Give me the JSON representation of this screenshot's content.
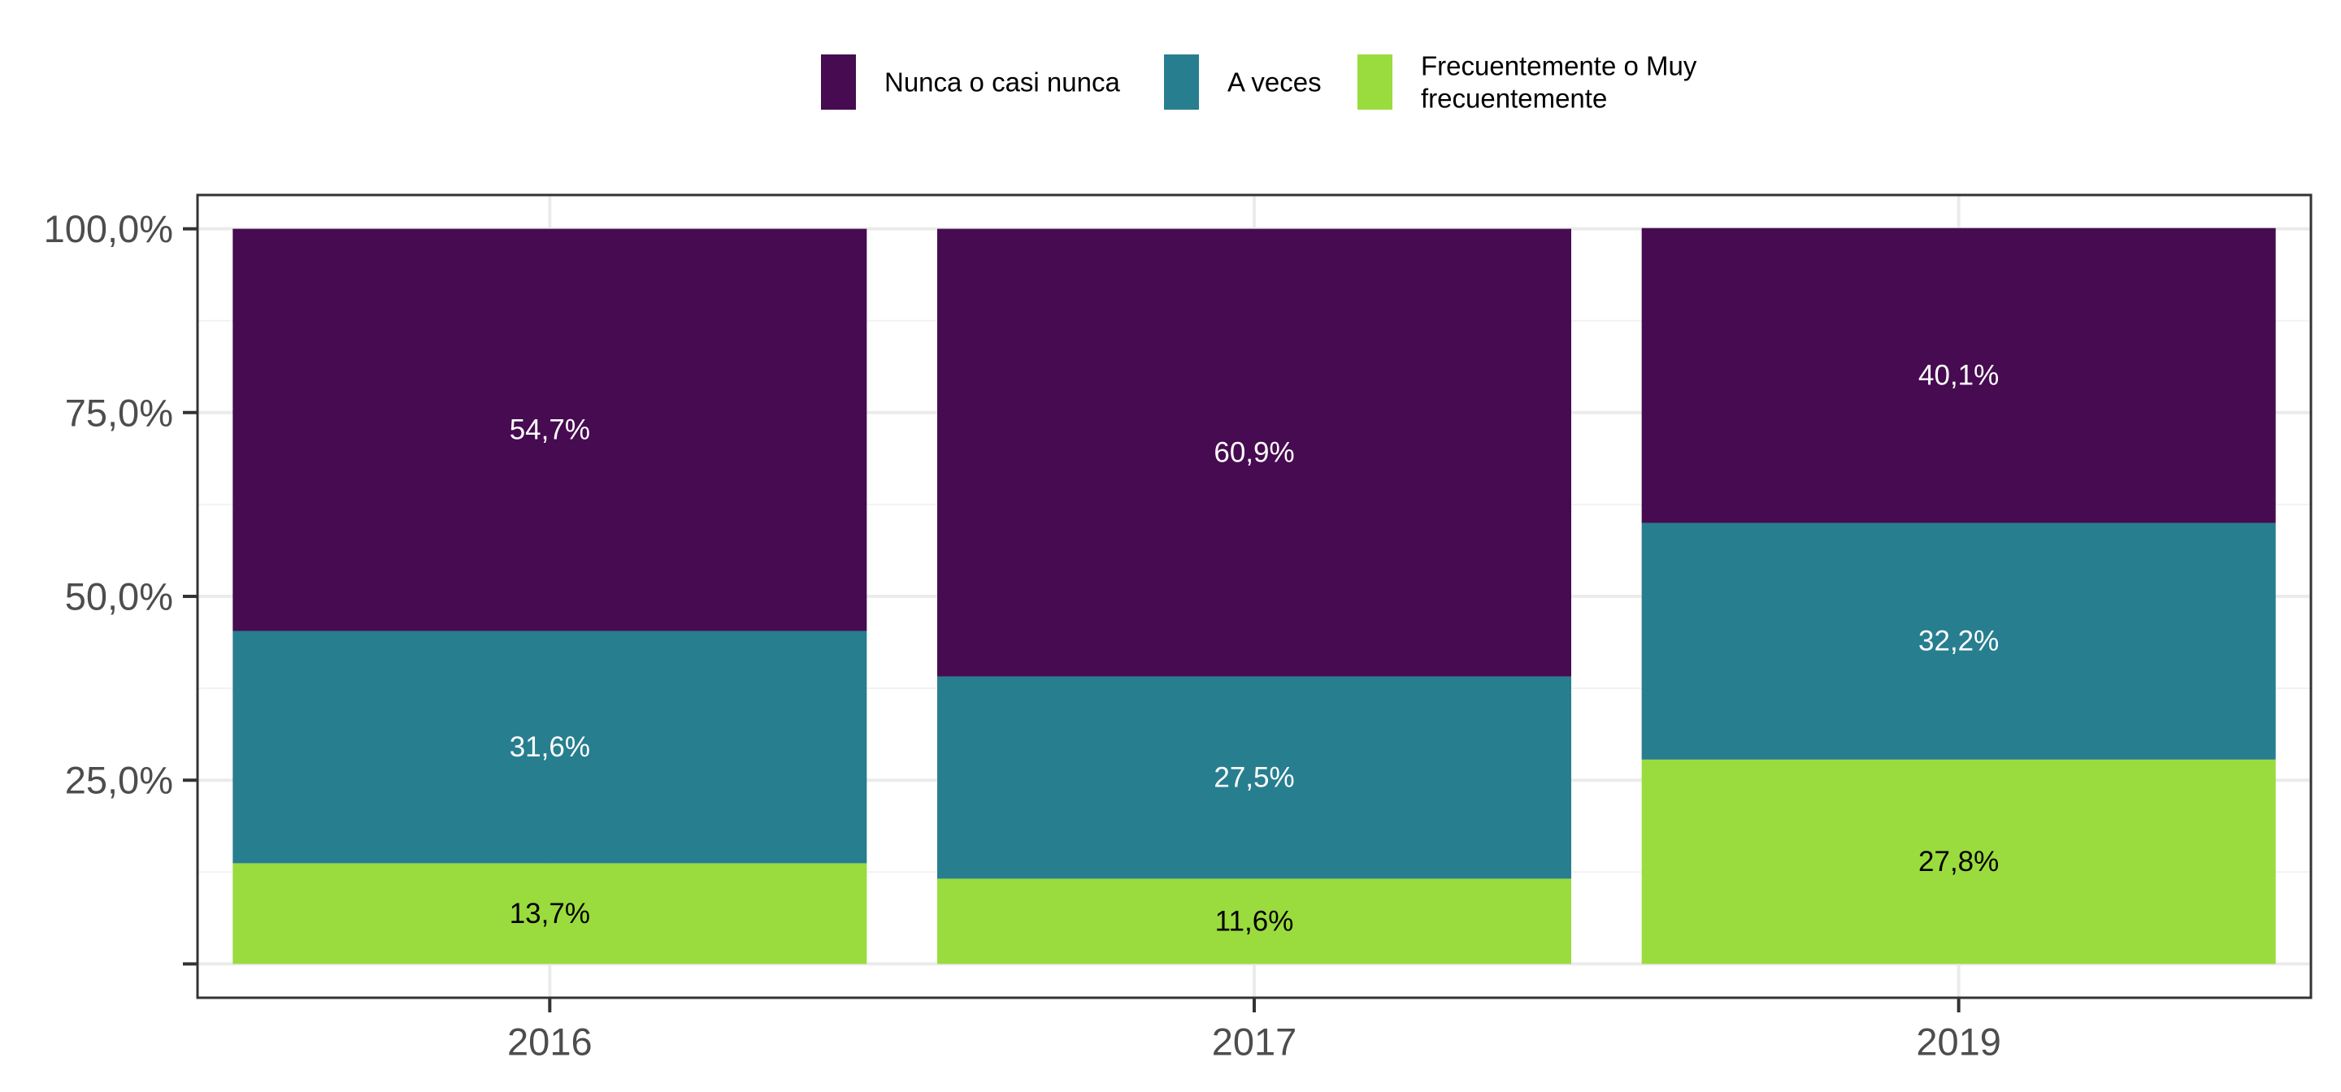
{
  "chart_data": {
    "type": "bar",
    "stacked": true,
    "categories": [
      "2016",
      "2017",
      "2019"
    ],
    "series": [
      {
        "name": "Frecuentemente o Muy frecuentemente",
        "legend_lines": [
          "Frecuentemente o Muy",
          "frecuentemente"
        ],
        "color": "#9ADB3E",
        "label_color": "#000000",
        "values": [
          13.7,
          11.6,
          27.8
        ],
        "labels": [
          "13,7%",
          "11,6%",
          "27,8%"
        ]
      },
      {
        "name": "A veces",
        "legend_lines": [
          "A veces"
        ],
        "color": "#277E8F",
        "label_color": "#ffffff",
        "values": [
          31.6,
          27.5,
          32.2
        ],
        "labels": [
          "31,6%",
          "27,5%",
          "32,2%"
        ]
      },
      {
        "name": "Nunca o casi nunca",
        "legend_lines": [
          "Nunca o casi nunca"
        ],
        "color": "#460B50",
        "label_color": "#ffffff",
        "values": [
          54.7,
          60.9,
          40.1
        ],
        "labels": [
          "54,7%",
          "60,9%",
          "40,1%"
        ]
      }
    ],
    "legend_order": [
      "Nunca o casi nunca",
      "A veces",
      "Frecuentemente o Muy frecuentemente"
    ],
    "y_ticks": [
      {
        "value": 0,
        "label": ""
      },
      {
        "value": 25,
        "label": "25,0%"
      },
      {
        "value": 50,
        "label": "50,0%"
      },
      {
        "value": 75,
        "label": "75,0%"
      },
      {
        "value": 100,
        "label": "100,0%"
      }
    ],
    "ylim": [
      -4.6,
      104.6
    ],
    "title": "",
    "xlabel": "",
    "ylabel": "",
    "grid": true,
    "legend_position": "top"
  }
}
